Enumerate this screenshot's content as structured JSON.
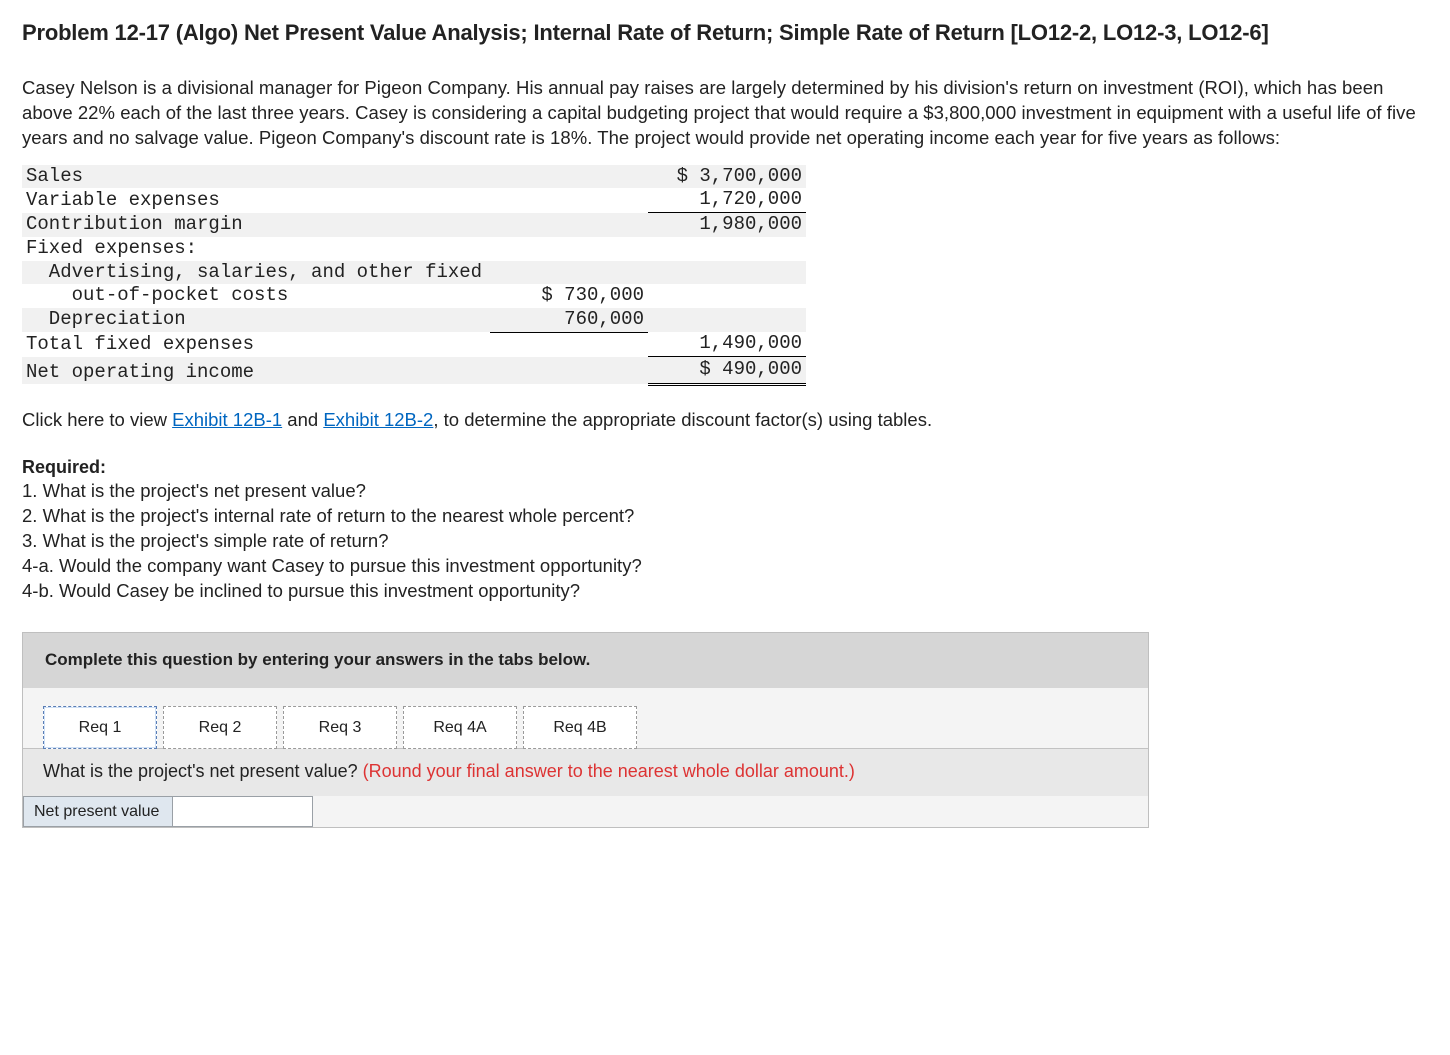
{
  "heading": "Problem 12-17 (Algo) Net Present Value Analysis; Internal Rate of Return; Simple Rate of Return [LO12-2, LO12-3, LO12-6]",
  "intro": "Casey Nelson is a divisional manager for Pigeon Company. His annual pay raises are largely determined by his division's return on investment (ROI), which has been above 22% each of the last three years. Casey is considering a capital budgeting project that would require a $3,800,000 investment in equipment with a useful life of five years and no salvage value. Pigeon Company's discount rate is 18%. The project would provide net operating income each year for five years as follows:",
  "income": {
    "rows": [
      {
        "label": "Sales",
        "col1": "",
        "col2": "$ 3,700,000",
        "alt": true
      },
      {
        "label": "Variable expenses",
        "col1": "",
        "col2": "1,720,000",
        "col2_class": "bb"
      },
      {
        "label": "Contribution margin",
        "col1": "",
        "col2": "1,980,000",
        "alt": true
      },
      {
        "label": "Fixed expenses:",
        "col1": "",
        "col2": ""
      },
      {
        "label": "  Advertising, salaries, and other fixed",
        "col1": "",
        "col2": "",
        "alt": true
      },
      {
        "label": "    out-of-pocket costs",
        "col1": "$ 730,000",
        "col2": ""
      },
      {
        "label": "  Depreciation",
        "col1": "760,000",
        "col1_class": "bb",
        "col2": "",
        "alt": true
      },
      {
        "label": "Total fixed expenses",
        "col1": "",
        "col2": "1,490,000",
        "col2_class": "bb"
      },
      {
        "label": "Net operating income",
        "col1": "",
        "col2": "$ 490,000",
        "col2_class": "dbl",
        "alt": true,
        "spacer": true
      }
    ]
  },
  "exhibit": {
    "prefix": "Click here to view ",
    "link1": "Exhibit 12B-1",
    "mid": " and ",
    "link2": "Exhibit 12B-2",
    "suffix": ", to determine the appropriate discount factor(s) using tables."
  },
  "required": {
    "title": "Required:",
    "items": [
      "1. What is the project's net present value?",
      "2. What is the project's internal rate of return to the nearest whole percent?",
      "3. What is the project's simple rate of return?",
      "4-a. Would the company want Casey to pursue this investment opportunity?",
      "4-b. Would Casey be inclined to pursue this investment opportunity?"
    ]
  },
  "answerBox": {
    "banner": "Complete this question by entering your answers in the tabs below.",
    "tabs": [
      "Req 1",
      "Req 2",
      "Req 3",
      "Req 4A",
      "Req 4B"
    ],
    "activeTab": 0,
    "question": "What is the project's net present value? ",
    "hint": "(Round your final answer to the nearest whole dollar amount.)",
    "entryLabel": "Net present value",
    "entryValue": ""
  }
}
